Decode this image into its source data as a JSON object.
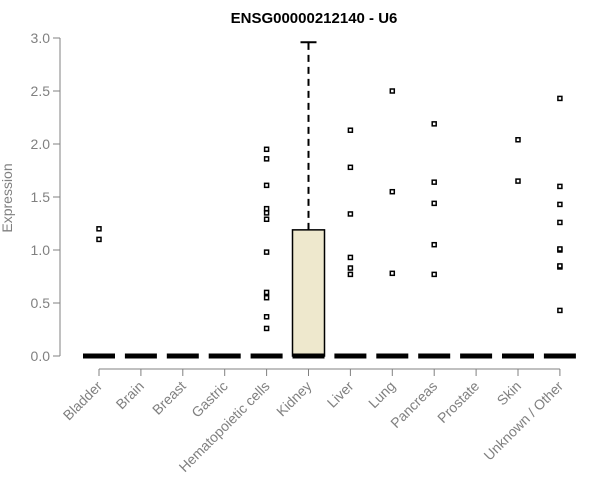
{
  "chart_data": {
    "type": "box",
    "title": "ENSG00000212140 - U6",
    "xlabel": "",
    "ylabel": "Expression",
    "ylim": [
      0,
      3
    ],
    "yticks": [
      "0.0",
      "0.5",
      "1.0",
      "1.5",
      "2.0",
      "2.5",
      "3.0"
    ],
    "grid": false,
    "colors": {
      "box_fill": "#EEE8CD",
      "outline": "#000000",
      "axis_text": "#808080"
    },
    "categories": [
      "Bladder",
      "Brain",
      "Breast",
      "Gastric",
      "Hematopoietic cells",
      "Kidney",
      "Liver",
      "Lung",
      "Pancreas",
      "Prostate",
      "Skin",
      "Unknown / Other"
    ],
    "boxes": [
      {
        "category": "Bladder",
        "q1": 0,
        "median": 0,
        "q3": 0,
        "whisker_low": 0,
        "whisker_high": 0,
        "outliers": [
          1.1,
          1.2
        ]
      },
      {
        "category": "Brain",
        "q1": 0,
        "median": 0,
        "q3": 0,
        "whisker_low": 0,
        "whisker_high": 0,
        "outliers": []
      },
      {
        "category": "Breast",
        "q1": 0,
        "median": 0,
        "q3": 0,
        "whisker_low": 0,
        "whisker_high": 0,
        "outliers": []
      },
      {
        "category": "Gastric",
        "q1": 0,
        "median": 0,
        "q3": 0,
        "whisker_low": 0,
        "whisker_high": 0,
        "outliers": []
      },
      {
        "category": "Hematopoietic cells",
        "q1": 0,
        "median": 0,
        "q3": 0,
        "whisker_low": 0,
        "whisker_high": 0,
        "outliers": [
          0.26,
          0.37,
          0.55,
          0.6,
          0.98,
          1.29,
          1.35,
          1.39,
          1.61,
          1.86,
          1.95
        ]
      },
      {
        "category": "Kidney",
        "q1": 0,
        "median": 0,
        "q3": 1.19,
        "whisker_low": 0,
        "whisker_high": 2.96,
        "outliers": []
      },
      {
        "category": "Liver",
        "q1": 0,
        "median": 0,
        "q3": 0,
        "whisker_low": 0,
        "whisker_high": 0,
        "outliers": [
          0.77,
          0.83,
          0.93,
          1.34,
          1.78,
          2.13
        ]
      },
      {
        "category": "Lung",
        "q1": 0,
        "median": 0,
        "q3": 0,
        "whisker_low": 0,
        "whisker_high": 0,
        "outliers": [
          0.78,
          1.55,
          2.5
        ]
      },
      {
        "category": "Pancreas",
        "q1": 0,
        "median": 0,
        "q3": 0,
        "whisker_low": 0,
        "whisker_high": 0,
        "outliers": [
          0.77,
          1.05,
          1.44,
          1.64,
          2.19
        ]
      },
      {
        "category": "Prostate",
        "q1": 0,
        "median": 0,
        "q3": 0,
        "whisker_low": 0,
        "whisker_high": 0,
        "outliers": []
      },
      {
        "category": "Skin",
        "q1": 0,
        "median": 0,
        "q3": 0,
        "whisker_low": 0,
        "whisker_high": 0,
        "outliers": [
          1.65,
          2.04
        ]
      },
      {
        "category": "Unknown / Other",
        "q1": 0,
        "median": 0,
        "q3": 0,
        "whisker_low": 0,
        "whisker_high": 0,
        "outliers": [
          0.43,
          0.84,
          0.85,
          1.0,
          1.01,
          1.26,
          1.43,
          1.6,
          2.43
        ]
      }
    ]
  }
}
